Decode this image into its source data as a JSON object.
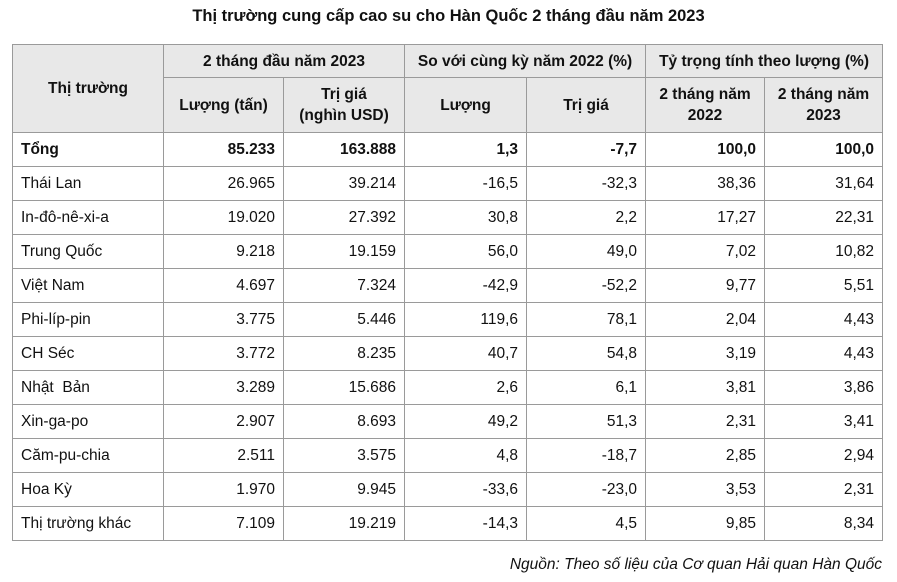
{
  "title": "Thị trường cung cấp cao su cho Hàn Quốc 2 tháng đầu năm 2023",
  "header": {
    "market": "Thị trường",
    "group_2023": "2 tháng đầu năm 2023",
    "group_change": "So với cùng kỳ năm 2022 (%)",
    "group_share": "Tỷ trọng tính theo lượng (%)",
    "volume_tons": "Lượng (tấn)",
    "value_line1": "Trị giá",
    "value_line2": "(nghìn USD)",
    "change_volume": "Lượng",
    "change_value": "Trị giá",
    "share_2022_line1": "2 tháng năm",
    "share_2022_line2": "2022",
    "share_2023_line1": "2 tháng năm",
    "share_2023_line2": "2023"
  },
  "rows": [
    {
      "market": "Tổng",
      "volume": "85.233",
      "value": "163.888",
      "chg_volume": "1,3",
      "chg_value": "-7,7",
      "share_2022": "100,0",
      "share_2023": "100,0"
    },
    {
      "market": "Thái Lan",
      "volume": "26.965",
      "value": "39.214",
      "chg_volume": "-16,5",
      "chg_value": "-32,3",
      "share_2022": "38,36",
      "share_2023": "31,64"
    },
    {
      "market": "In-đô-nê-xi-a",
      "volume": "19.020",
      "value": "27.392",
      "chg_volume": "30,8",
      "chg_value": "2,2",
      "share_2022": "17,27",
      "share_2023": "22,31"
    },
    {
      "market": "Trung Quốc",
      "volume": "9.218",
      "value": "19.159",
      "chg_volume": "56,0",
      "chg_value": "49,0",
      "share_2022": "7,02",
      "share_2023": "10,82"
    },
    {
      "market": "Việt Nam",
      "volume": "4.697",
      "value": "7.324",
      "chg_volume": "-42,9",
      "chg_value": "-52,2",
      "share_2022": "9,77",
      "share_2023": "5,51"
    },
    {
      "market": "Phi-líp-pin",
      "volume": "3.775",
      "value": "5.446",
      "chg_volume": "119,6",
      "chg_value": "78,1",
      "share_2022": "2,04",
      "share_2023": "4,43"
    },
    {
      "market": "CH Séc",
      "volume": "3.772",
      "value": "8.235",
      "chg_volume": "40,7",
      "chg_value": "54,8",
      "share_2022": "3,19",
      "share_2023": "4,43"
    },
    {
      "market": "Nhật  Bản",
      "volume": "3.289",
      "value": "15.686",
      "chg_volume": "2,6",
      "chg_value": "6,1",
      "share_2022": "3,81",
      "share_2023": "3,86"
    },
    {
      "market": "Xin-ga-po",
      "volume": "2.907",
      "value": "8.693",
      "chg_volume": "49,2",
      "chg_value": "51,3",
      "share_2022": "2,31",
      "share_2023": "3,41"
    },
    {
      "market": "Căm-pu-chia",
      "volume": "2.511",
      "value": "3.575",
      "chg_volume": "4,8",
      "chg_value": "-18,7",
      "share_2022": "2,85",
      "share_2023": "2,94"
    },
    {
      "market": "Hoa Kỳ",
      "volume": "1.970",
      "value": "9.945",
      "chg_volume": "-33,6",
      "chg_value": "-23,0",
      "share_2022": "3,53",
      "share_2023": "2,31"
    },
    {
      "market": "Thị trường khác",
      "volume": "7.109",
      "value": "19.219",
      "chg_volume": "-14,3",
      "chg_value": "4,5",
      "share_2022": "9,85",
      "share_2023": "8,34"
    }
  ],
  "source": "Nguồn: Theo số liệu của Cơ quan Hải quan Hàn Quốc"
}
